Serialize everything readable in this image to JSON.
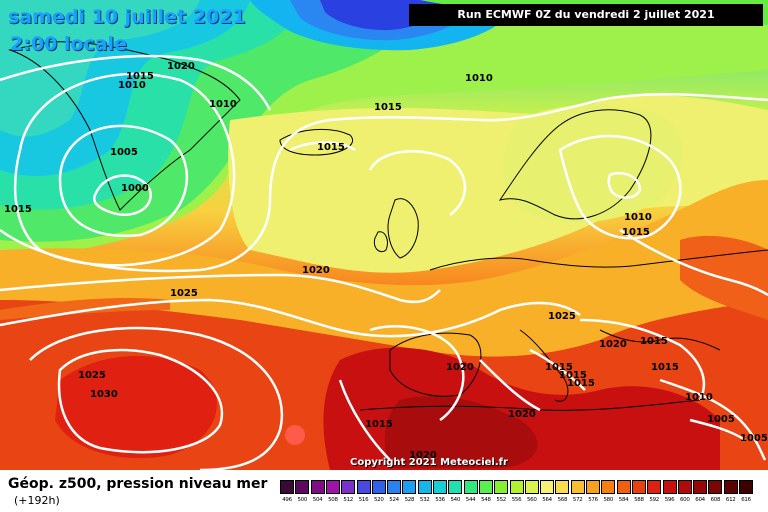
{
  "title": {
    "date": "samedi 10 juillet 2021",
    "time": "2:00 locale"
  },
  "run_info": "Run ECMWF 0Z du vendredi 2 juillet 2021",
  "footer": {
    "field": "Géop. z500, pression niveau mer",
    "lead": "(+192h)",
    "copyright": "Copyright 2021 Meteociel.fr"
  },
  "legend": {
    "values": [
      "496",
      "500",
      "504",
      "508",
      "512",
      "516",
      "520",
      "524",
      "528",
      "532",
      "536",
      "540",
      "544",
      "548",
      "552",
      "556",
      "560",
      "564",
      "568",
      "572",
      "576",
      "580",
      "584",
      "588",
      "592",
      "596",
      "600",
      "604",
      "608",
      "612",
      "616"
    ],
    "colors": [
      "#3a0a36",
      "#5b0a5f",
      "#7d0f83",
      "#9d14a8",
      "#7a32c8",
      "#4a4ae0",
      "#2f62ea",
      "#2a82f0",
      "#1e9ef0",
      "#14b7e8",
      "#18cfd8",
      "#20dfb0",
      "#34e880",
      "#5aee50",
      "#86f030",
      "#b4f030",
      "#dcf050",
      "#f8f070",
      "#f8dc50",
      "#f8c030",
      "#f8a020",
      "#f88010",
      "#f06010",
      "#e84010",
      "#e02010",
      "#c81010",
      "#b00a0a",
      "#960808",
      "#7a0606",
      "#5c0404",
      "#3a0202"
    ]
  },
  "isobars": [
    {
      "value": "1020",
      "id": "greenland-n"
    },
    {
      "value": "1015",
      "id": "greenland-w"
    },
    {
      "value": "1010",
      "id": "greenland-w2"
    },
    {
      "value": "1005",
      "id": "greenland-low"
    },
    {
      "value": "1000",
      "id": "greenland-center"
    },
    {
      "value": "1015",
      "id": "atlantic-w"
    },
    {
      "value": "1010",
      "id": "greenland-e"
    },
    {
      "value": "1015",
      "id": "iceland-s"
    },
    {
      "value": "1015",
      "id": "iceland"
    },
    {
      "value": "1010",
      "id": "norway-sea"
    },
    {
      "value": "1020",
      "id": "atlantic-mid"
    },
    {
      "value": "1025",
      "id": "atlantic-sw"
    },
    {
      "value": "1010",
      "id": "baltic"
    },
    {
      "value": "1015",
      "id": "baltic-s"
    },
    {
      "value": "1025",
      "id": "alps"
    },
    {
      "value": "1020",
      "id": "balkans"
    },
    {
      "value": "1015",
      "id": "black-sea-w"
    },
    {
      "value": "1015",
      "id": "adriatic"
    },
    {
      "value": "1015",
      "id": "italy"
    },
    {
      "value": "1015",
      "id": "italy-s"
    },
    {
      "value": "1020",
      "id": "iberia"
    },
    {
      "value": "1015",
      "id": "black-sea"
    },
    {
      "value": "1010",
      "id": "turkey"
    },
    {
      "value": "1005",
      "id": "turkey-e"
    },
    {
      "value": "1005",
      "id": "middle-east"
    },
    {
      "value": "1020",
      "id": "med"
    },
    {
      "value": "1020",
      "id": "africa-n"
    },
    {
      "value": "1015",
      "id": "africa"
    },
    {
      "value": "1025",
      "id": "azores-n"
    },
    {
      "value": "1030",
      "id": "azores"
    }
  ]
}
